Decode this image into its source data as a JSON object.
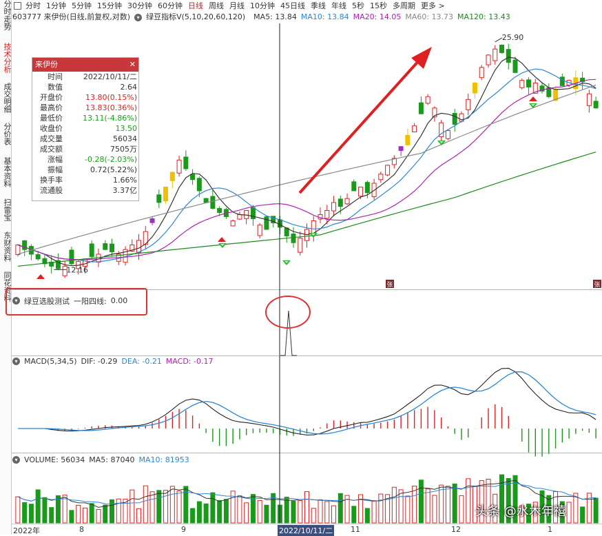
{
  "left_nav": [
    "分时走势",
    "技术分析",
    "成交明细",
    "分价表",
    "基本资料",
    "扫雷宝",
    "东财资料",
    "同花资料"
  ],
  "left_nav_active": "技术分析",
  "period_tabs": [
    "分时",
    "1分钟",
    "5分钟",
    "15分钟",
    "30分钟",
    "60分钟",
    "日线",
    "周线",
    "月线",
    "10分钟",
    "45日线",
    "季线",
    "年线",
    "5秒",
    "15秒",
    "多周期",
    "更多 >"
  ],
  "period_active": "日线",
  "stock_line": {
    "title": "603777 来伊份(日线,前复权,对数)",
    "indicator": "绿豆指标V(5,10,20,60,120)",
    "ma": [
      {
        "label": "MA5: 13.84",
        "color": "#333333"
      },
      {
        "label": "MA10: 13.84",
        "color": "#2a86d6"
      },
      {
        "label": "MA20: 14.05",
        "color": "#b020b0"
      },
      {
        "label": "MA60: 13.73",
        "color": "#888888"
      },
      {
        "label": "MA120: 13.43",
        "color": "#1a8a1a"
      }
    ]
  },
  "info_box": {
    "title": "来伊份",
    "close_icon": "close-icon",
    "rows": [
      {
        "k": "时间",
        "v": "2022/10/11/二",
        "c": "dark"
      },
      {
        "k": "数值",
        "v": "2.64",
        "c": "dark"
      },
      {
        "k": "开盘价",
        "v": "13.80(0.15%)",
        "c": "red"
      },
      {
        "k": "最高价",
        "v": "13.83(0.36%)",
        "c": "red"
      },
      {
        "k": "最低价",
        "v": "13.11(-4.86%)",
        "c": "green"
      },
      {
        "k": "收盘价",
        "v": "13.50",
        "c": "green"
      },
      {
        "k": "成交量",
        "v": "56034",
        "c": "dark"
      },
      {
        "k": "成交额",
        "v": "7505万",
        "c": "dark"
      },
      {
        "k": "涨幅",
        "v": "-0.28(-2.03%)",
        "c": "green"
      },
      {
        "k": "振幅",
        "v": "0.72(5.22%)",
        "c": "dark"
      },
      {
        "k": "换手率",
        "v": "1.66%",
        "c": "dark"
      },
      {
        "k": "流通股",
        "v": "3.37亿",
        "c": "dark"
      }
    ]
  },
  "price_annotations": {
    "high": "25.90",
    "low": "12.16",
    "marker": "张"
  },
  "signal_panel": {
    "title": "绿豆选股测试",
    "label": "一阳四线:",
    "value": "0.00"
  },
  "macd_panel": {
    "title": "MACD(5,34,5)",
    "dif": "DIF: -0.29",
    "dea": "DEA: -0.21",
    "macd": "MACD: -0.17"
  },
  "volume_panel": {
    "title": "VOLUME: 56034",
    "ma5": "MA5: 87040",
    "ma10": "MA10: 81953"
  },
  "x_axis": [
    "2022年",
    "8",
    "9",
    "2022/10/11/二",
    "11",
    "12",
    "1"
  ],
  "watermark": "头条 @水木年禧",
  "colors": {
    "up": "#e02020",
    "down": "#1a9a1a",
    "purple": "#9a30c0",
    "yellow": "#f0c000",
    "ma5": "#333333",
    "ma10": "#2a86d6",
    "ma20": "#b020b0",
    "ma60": "#888888",
    "ma120": "#1a8a1a"
  },
  "chart_data": {
    "type": "candlestick",
    "title": "603777 来伊份(日线,前复权,对数)",
    "selected_date": "2022/10/11",
    "selected_ohlc": {
      "open": 13.8,
      "high": 13.83,
      "low": 13.11,
      "close": 13.5
    },
    "price_marks": {
      "period_high": 25.9,
      "period_low": 12.16
    },
    "close_path": [
      13.2,
      13.0,
      12.8,
      12.6,
      12.4,
      12.3,
      12.2,
      12.3,
      12.4,
      12.5,
      12.6,
      12.7,
      12.8,
      13.0,
      12.9,
      12.8,
      13.0,
      13.2,
      13.4,
      13.8,
      14.4,
      15.2,
      16.0,
      16.8,
      17.5,
      17.0,
      16.4,
      15.8,
      15.2,
      14.9,
      14.7,
      14.5,
      14.3,
      14.6,
      14.8,
      14.4,
      14.1,
      13.9,
      14.2,
      14.0,
      13.6,
      13.3,
      13.5,
      13.9,
      14.3,
      14.6,
      14.8,
      15.2,
      15.0,
      15.4,
      15.8,
      16.0,
      15.7,
      16.2,
      16.7,
      17.2,
      17.6,
      18.3,
      19.0,
      19.6,
      20.4,
      21.6,
      20.8,
      19.8,
      19.3,
      19.7,
      20.4,
      21.4,
      22.6,
      23.8,
      24.8,
      25.3,
      25.0,
      24.2,
      23.4,
      22.8,
      22.3,
      22.6,
      22.0,
      21.6,
      22.1,
      22.4,
      22.8,
      23.0,
      22.7,
      21.8,
      20.8
    ],
    "ma_last": {
      "MA5": 13.84,
      "MA10": 13.84,
      "MA20": 14.05,
      "MA60": 13.73,
      "MA120": 13.43
    },
    "signal": {
      "name": "一阳四线",
      "value": 0.0
    },
    "macd": {
      "params": "5,34,5",
      "DIF": -0.29,
      "DEA": -0.21,
      "MACD": -0.17
    },
    "volume": {
      "last": 56034,
      "MA5": 87040,
      "MA10": 81953
    },
    "x_ticks": [
      "2022年",
      "8",
      "9",
      "2022/10/11",
      "11",
      "12",
      "1"
    ]
  }
}
